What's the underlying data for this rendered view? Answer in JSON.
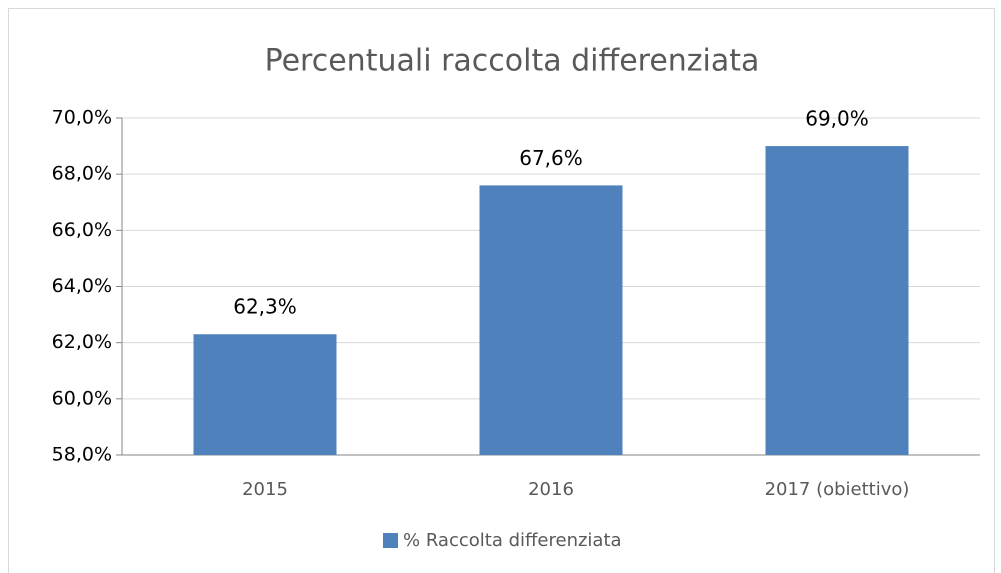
{
  "chart_data": {
    "type": "bar",
    "title": "Percentuali raccolta differenziata",
    "categories": [
      "2015",
      "2016",
      "2017 (obiettivo)"
    ],
    "series": [
      {
        "name": "% Raccolta differenziata",
        "color": "#4f81bd",
        "values": [
          62.3,
          67.6,
          69.0
        ],
        "value_labels": [
          "62,3%",
          "67,6%",
          "69,0%"
        ]
      }
    ],
    "ylim": [
      58,
      70
    ],
    "yticks": [
      {
        "value": 58,
        "label": "58,0%"
      },
      {
        "value": 60,
        "label": "60,0%"
      },
      {
        "value": 62,
        "label": "62,0%"
      },
      {
        "value": 64,
        "label": "64,0%"
      },
      {
        "value": 66,
        "label": "66,0%"
      },
      {
        "value": 68,
        "label": "68,0%"
      },
      {
        "value": 70,
        "label": "70,0%"
      }
    ],
    "grid": true,
    "legend": "bottom"
  }
}
